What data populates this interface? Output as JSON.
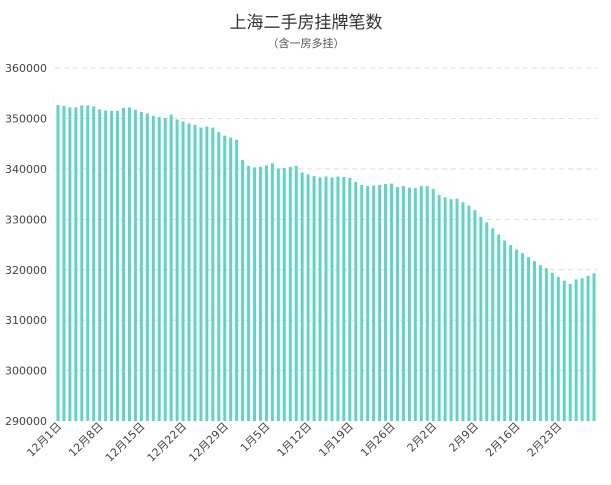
{
  "chart_data": {
    "type": "bar",
    "title": "上海二手房挂牌笔数",
    "subtitle": "（含一房多挂）",
    "watermark": "",
    "bar_color": "#5fd3c4",
    "grid": true,
    "ylim": [
      290000,
      362000
    ],
    "yticks": [
      290000,
      300000,
      310000,
      320000,
      330000,
      340000,
      350000,
      360000
    ],
    "ytick_labels": [
      "290000",
      "300000",
      "310000",
      "320000",
      "330000",
      "340000",
      "350000",
      "360000"
    ],
    "xtick_labels": [
      "12月1日",
      "12月8日",
      "12月15日",
      "12月22日",
      "12月29日",
      "1月5日",
      "1月12日",
      "1月19日",
      "1月26日",
      "2月2日",
      "2月9日",
      "2月16日",
      "2月23日"
    ],
    "xtick_every": 7,
    "values": [
      352700,
      352500,
      352200,
      352200,
      352600,
      352600,
      352400,
      351800,
      351600,
      351500,
      351500,
      352100,
      352200,
      351700,
      351300,
      351000,
      350500,
      350300,
      350100,
      350800,
      349800,
      349400,
      349000,
      348700,
      348200,
      348400,
      348200,
      347300,
      346600,
      346200,
      345800,
      341800,
      340600,
      340300,
      340400,
      340700,
      341100,
      340100,
      340200,
      340400,
      340600,
      339300,
      338900,
      338600,
      338300,
      338500,
      338300,
      338500,
      338400,
      338200,
      337400,
      336800,
      336600,
      336700,
      336800,
      337000,
      337100,
      336400,
      336600,
      336300,
      336200,
      336600,
      336600,
      336000,
      334800,
      334400,
      334000,
      334100,
      333400,
      332700,
      331800,
      330500,
      329400,
      328200,
      327000,
      325800,
      324900,
      324000,
      323300,
      322500,
      321700,
      320900,
      320300,
      319400,
      318600,
      317800,
      317200,
      318100,
      318300,
      318800,
      319300
    ]
  }
}
